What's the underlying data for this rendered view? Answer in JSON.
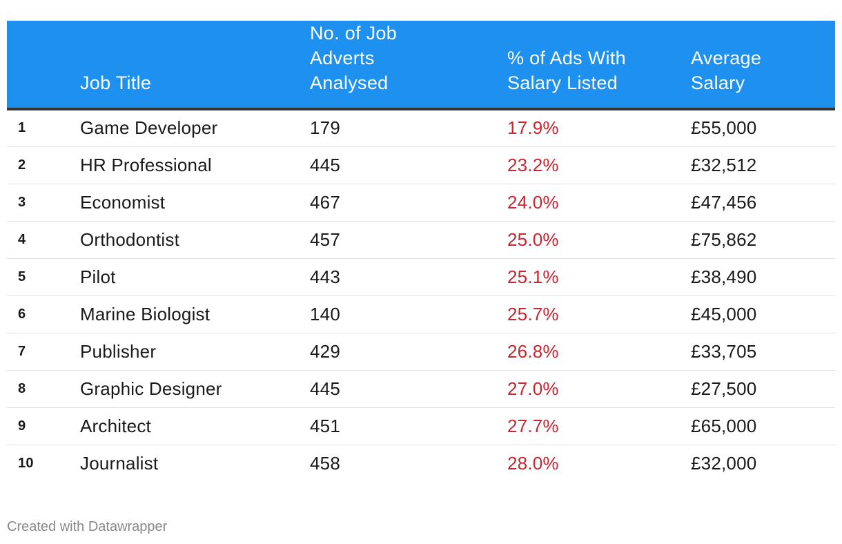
{
  "chart_data": {
    "type": "table",
    "columns": [
      "",
      "Job Title",
      "No. of Job Adverts Analysed",
      "% of Ads With Salary Listed",
      "Average Salary"
    ],
    "header_lines": {
      "rank": [],
      "title": [
        "Job Title"
      ],
      "adverts": [
        "No. of Job",
        "Adverts",
        "Analysed"
      ],
      "pct": [
        "% of Ads With",
        "Salary Listed"
      ],
      "salary": [
        "Average",
        "Salary"
      ]
    },
    "rows": [
      {
        "rank": "1",
        "title": "Game Developer",
        "adverts": "179",
        "pct": "17.9%",
        "salary": "£55,000"
      },
      {
        "rank": "2",
        "title": "HR Professional",
        "adverts": "445",
        "pct": "23.2%",
        "salary": "£32,512"
      },
      {
        "rank": "3",
        "title": "Economist",
        "adverts": "467",
        "pct": "24.0%",
        "salary": "£47,456"
      },
      {
        "rank": "4",
        "title": "Orthodontist",
        "adverts": "457",
        "pct": "25.0%",
        "salary": "£75,862"
      },
      {
        "rank": "5",
        "title": "Pilot",
        "adverts": "443",
        "pct": "25.1%",
        "salary": "£38,490"
      },
      {
        "rank": "6",
        "title": "Marine Biologist",
        "adverts": "140",
        "pct": "25.7%",
        "salary": "£45,000"
      },
      {
        "rank": "7",
        "title": "Publisher",
        "adverts": "429",
        "pct": "26.8%",
        "salary": "£33,705"
      },
      {
        "rank": "8",
        "title": "Graphic Designer",
        "adverts": "445",
        "pct": "27.0%",
        "salary": "£27,500"
      },
      {
        "rank": "9",
        "title": "Architect",
        "adverts": "451",
        "pct": "27.7%",
        "salary": "£65,000"
      },
      {
        "rank": "10",
        "title": "Journalist",
        "adverts": "458",
        "pct": "28.0%",
        "salary": "£32,000"
      }
    ]
  },
  "footer": {
    "credit": "Created with Datawrapper"
  },
  "colors": {
    "header_bg": "#1e90f0",
    "header_text": "#ffffff",
    "pct_text": "#c8252f",
    "footer_text": "#888888"
  }
}
